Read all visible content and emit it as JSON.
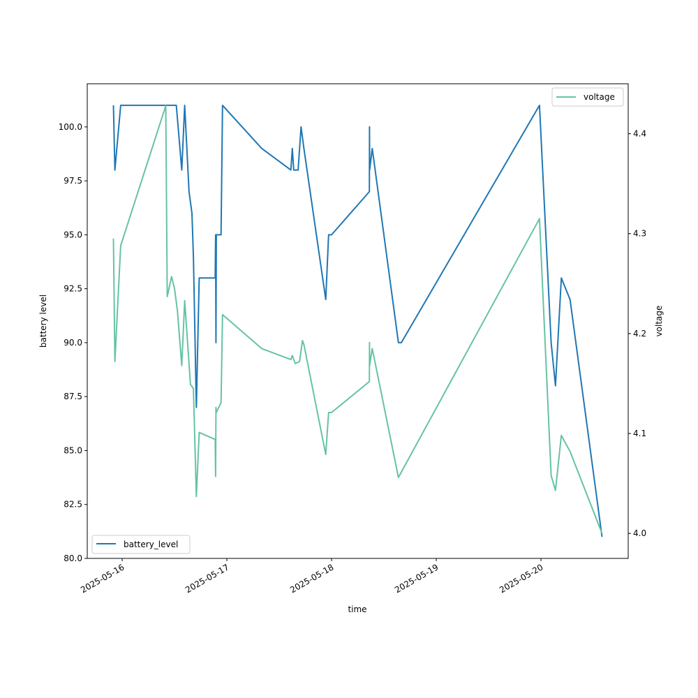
{
  "chart_data": {
    "type": "line",
    "xlabel": "time",
    "ylabel_left": "battery level",
    "ylabel_right": "voltage",
    "x_ticks": [
      "2025-05-16",
      "2025-05-17",
      "2025-05-18",
      "2025-05-19",
      "2025-05-20"
    ],
    "y_left_ticks": [
      "80.0",
      "82.5",
      "85.0",
      "87.5",
      "90.0",
      "92.5",
      "95.0",
      "97.5",
      "100.0"
    ],
    "y_right_ticks": [
      "4.0",
      "4.1",
      "4.2",
      "4.3",
      "4.4"
    ],
    "ylim_left": [
      80,
      102
    ],
    "ylim_right": [
      3.975,
      4.45
    ],
    "xlim": [
      "2025-05-15 16:00",
      "2025-05-20 20:00"
    ],
    "grid": false,
    "legend_left": "bottom-left",
    "legend_right": "top-right",
    "series": [
      {
        "name": "battery_level",
        "axis": "left",
        "color": "#1f77b4",
        "points": [
          [
            "2025-05-15 22:00",
            101
          ],
          [
            "2025-05-15 22:20",
            98
          ],
          [
            "2025-05-15 23:40",
            101
          ],
          [
            "2025-05-16 10:00",
            101
          ],
          [
            "2025-05-16 12:00",
            101
          ],
          [
            "2025-05-16 12:25",
            101
          ],
          [
            "2025-05-16 13:40",
            98
          ],
          [
            "2025-05-16 14:20",
            101
          ],
          [
            "2025-05-16 15:20",
            97
          ],
          [
            "2025-05-16 16:00",
            96
          ],
          [
            "2025-05-16 16:20",
            94
          ],
          [
            "2025-05-16 17:00",
            87
          ],
          [
            "2025-05-16 17:40",
            93
          ],
          [
            "2025-05-16 21:20",
            93
          ],
          [
            "2025-05-16 21:25",
            95
          ],
          [
            "2025-05-16 21:30",
            90
          ],
          [
            "2025-05-16 21:35",
            95
          ],
          [
            "2025-05-16 22:40",
            95
          ],
          [
            "2025-05-16 23:00",
            101
          ],
          [
            "2025-05-17 08:00",
            99
          ],
          [
            "2025-05-17 14:40",
            98
          ],
          [
            "2025-05-17 15:00",
            99
          ],
          [
            "2025-05-17 15:20",
            98
          ],
          [
            "2025-05-17 16:20",
            98
          ],
          [
            "2025-05-17 17:00",
            100
          ],
          [
            "2025-05-17 17:40",
            99
          ],
          [
            "2025-05-17 22:40",
            92
          ],
          [
            "2025-05-17 23:20",
            95
          ],
          [
            "2025-05-18 00:00",
            95
          ],
          [
            "2025-05-18 08:40",
            97
          ],
          [
            "2025-05-18 08:42",
            100
          ],
          [
            "2025-05-18 08:44",
            98
          ],
          [
            "2025-05-18 09:20",
            99
          ],
          [
            "2025-05-18 15:20",
            90
          ],
          [
            "2025-05-18 16:00",
            90
          ],
          [
            "2025-05-19 23:40",
            101
          ],
          [
            "2025-05-20 02:20",
            90
          ],
          [
            "2025-05-20 03:20",
            88
          ],
          [
            "2025-05-20 04:40",
            93
          ],
          [
            "2025-05-20 06:40",
            92
          ],
          [
            "2025-05-20 14:00",
            81
          ]
        ]
      },
      {
        "name": "voltage",
        "axis": "right",
        "color": "#66c2a5",
        "points": [
          [
            "2025-05-15 22:00",
            4.295
          ],
          [
            "2025-05-15 22:20",
            4.172
          ],
          [
            "2025-05-15 23:40",
            4.288
          ],
          [
            "2025-05-16 10:00",
            4.428
          ],
          [
            "2025-05-16 10:20",
            4.237
          ],
          [
            "2025-05-16 11:20",
            4.257
          ],
          [
            "2025-05-16 12:00",
            4.245
          ],
          [
            "2025-05-16 12:40",
            4.223
          ],
          [
            "2025-05-16 13:40",
            4.168
          ],
          [
            "2025-05-16 14:20",
            4.233
          ],
          [
            "2025-05-16 15:40",
            4.149
          ],
          [
            "2025-05-16 16:20",
            4.145
          ],
          [
            "2025-05-16 17:00",
            4.037
          ],
          [
            "2025-05-16 17:40",
            4.101
          ],
          [
            "2025-05-16 21:20",
            4.094
          ],
          [
            "2025-05-16 21:25",
            4.057
          ],
          [
            "2025-05-16 21:30",
            4.126
          ],
          [
            "2025-05-16 21:35",
            4.121
          ],
          [
            "2025-05-16 22:40",
            4.131
          ],
          [
            "2025-05-16 23:00",
            4.219
          ],
          [
            "2025-05-17 08:00",
            4.185
          ],
          [
            "2025-05-17 14:40",
            4.174
          ],
          [
            "2025-05-17 15:00",
            4.178
          ],
          [
            "2025-05-17 15:40",
            4.17
          ],
          [
            "2025-05-17 16:40",
            4.172
          ],
          [
            "2025-05-17 17:20",
            4.193
          ],
          [
            "2025-05-17 17:40",
            4.189
          ],
          [
            "2025-05-17 22:40",
            4.079
          ],
          [
            "2025-05-17 23:20",
            4.121
          ],
          [
            "2025-05-18 00:00",
            4.121
          ],
          [
            "2025-05-18 08:40",
            4.152
          ],
          [
            "2025-05-18 08:42",
            4.191
          ],
          [
            "2025-05-18 08:44",
            4.168
          ],
          [
            "2025-05-18 09:20",
            4.185
          ],
          [
            "2025-05-18 15:20",
            4.056
          ],
          [
            "2025-05-19 23:40",
            4.315
          ],
          [
            "2025-05-20 02:20",
            4.058
          ],
          [
            "2025-05-20 03:20",
            4.043
          ],
          [
            "2025-05-20 04:40",
            4.098
          ],
          [
            "2025-05-20 06:40",
            4.082
          ],
          [
            "2025-05-20 14:00",
            4.0
          ]
        ]
      }
    ]
  }
}
